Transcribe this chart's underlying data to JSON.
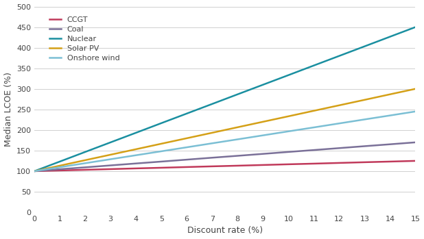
{
  "x": [
    0,
    1,
    2,
    3,
    4,
    5,
    6,
    7,
    8,
    9,
    10,
    11,
    12,
    13,
    14,
    15
  ],
  "series": {
    "CCGT": [
      100,
      101.7,
      103.3,
      105.0,
      106.7,
      108.3,
      110.0,
      111.7,
      113.3,
      115.0,
      116.7,
      118.3,
      120.0,
      121.7,
      123.3,
      125
    ],
    "Coal": [
      100,
      104.7,
      109.3,
      114.0,
      118.7,
      123.3,
      128.0,
      132.7,
      137.3,
      142.0,
      146.7,
      151.3,
      156.0,
      160.7,
      165.3,
      170
    ],
    "Nuclear": [
      100,
      123.3,
      146.7,
      170.0,
      193.3,
      216.7,
      240.0,
      263.3,
      286.7,
      310.0,
      333.3,
      356.7,
      380.0,
      403.3,
      426.7,
      450
    ],
    "Solar PV": [
      100,
      113.3,
      126.7,
      140.0,
      153.3,
      166.7,
      180.0,
      193.3,
      206.7,
      220.0,
      233.3,
      246.7,
      260.0,
      273.3,
      286.7,
      300
    ],
    "Onshore wind": [
      100,
      109.7,
      119.3,
      129.0,
      138.7,
      148.3,
      158.0,
      167.7,
      177.3,
      187.0,
      196.7,
      206.3,
      216.0,
      225.7,
      235.3,
      245
    ]
  },
  "colors": {
    "CCGT": "#c0395a",
    "Coal": "#7a7098",
    "Nuclear": "#1a8fa0",
    "Solar PV": "#d4a017",
    "Onshore wind": "#7bbfd4"
  },
  "xlabel": "Discount rate (%)",
  "ylabel": "Median LCOE (%)",
  "ylim": [
    0,
    500
  ],
  "xlim": [
    0,
    15
  ],
  "yticks": [
    0,
    50,
    100,
    150,
    200,
    250,
    300,
    350,
    400,
    450,
    500
  ],
  "xticks": [
    0,
    1,
    2,
    3,
    4,
    5,
    6,
    7,
    8,
    9,
    10,
    11,
    12,
    13,
    14,
    15
  ],
  "background_color": "#ffffff",
  "grid_color": "#d0d0d0",
  "linewidth": 1.8
}
